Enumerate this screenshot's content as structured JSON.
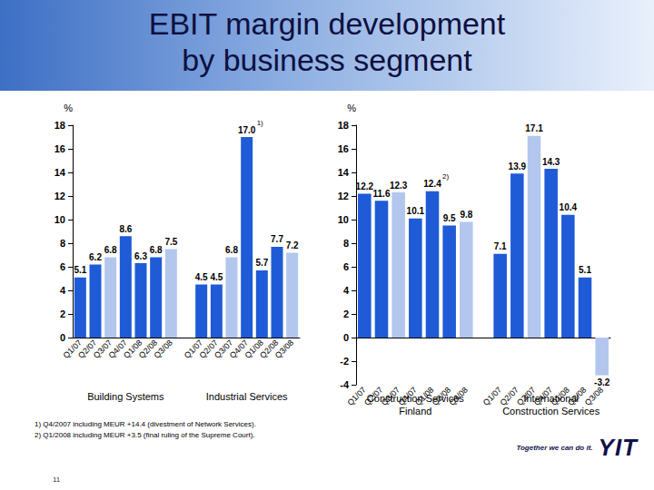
{
  "title": "EBIT margin development\nby business segment",
  "chart_data": [
    {
      "type": "bar",
      "y_label": "%",
      "categories": [
        "Q1/07",
        "Q2/07",
        "Q3/07",
        "Q4/07",
        "Q1/08",
        "Q2/08",
        "Q3/08",
        null,
        "Q1/07",
        "Q2/07",
        "Q3/07",
        "Q4/07",
        "Q1/08",
        "Q2/08",
        "Q3/08"
      ],
      "values": [
        5.1,
        6.2,
        6.8,
        8.6,
        6.3,
        6.8,
        7.5,
        null,
        4.5,
        4.5,
        6.8,
        17.0,
        5.7,
        7.7,
        7.2
      ],
      "value_labels": [
        "5.1",
        "6.2",
        "6.8",
        "8.6",
        "6.3",
        "6.8",
        "7.5",
        null,
        "4.5",
        "4.5",
        "6.8",
        "17.0",
        "5.7",
        "7.7",
        "7.2"
      ],
      "colors": [
        "#1f5bd6",
        "#1f5bd6",
        "#b3c6ee",
        "#1f5bd6",
        "#1f5bd6",
        "#1f5bd6",
        "#b3c6ee",
        null,
        "#1f5bd6",
        "#1f5bd6",
        "#b3c6ee",
        "#1f5bd6",
        "#1f5bd6",
        "#1f5bd6",
        "#b3c6ee"
      ],
      "group_labels": [
        "Building Systems",
        "Industrial Services"
      ],
      "annotations": [
        {
          "text": "1)",
          "index": 11
        }
      ],
      "ylim": [
        0,
        18
      ],
      "yticks": [
        0,
        2,
        4,
        6,
        8,
        10,
        12,
        14,
        16,
        18
      ],
      "grid": false,
      "data_labels": true
    },
    {
      "type": "bar",
      "y_label": "%",
      "categories": [
        "Q1/07",
        "Q2/07",
        "Q3/07",
        "Q4/07",
        "Q1/08",
        "Q2/08",
        "Q3/08",
        null,
        "Q1/07",
        "Q2/07",
        "Q3/07",
        "Q4/07",
        "Q1/08",
        "Q2/08",
        "Q3/08"
      ],
      "values": [
        12.2,
        11.6,
        12.3,
        10.1,
        12.4,
        9.5,
        9.8,
        null,
        7.1,
        13.9,
        17.1,
        14.3,
        10.4,
        5.1,
        -3.2
      ],
      "value_labels": [
        "12.2",
        "11.6",
        "12.3",
        "10.1",
        "12.4",
        "9.5",
        "9.8",
        null,
        "7.1",
        "13.9",
        "17.1",
        "14.3",
        "10.4",
        "5.1",
        "-3.2"
      ],
      "colors": [
        "#1f5bd6",
        "#1f5bd6",
        "#b3c6ee",
        "#1f5bd6",
        "#1f5bd6",
        "#1f5bd6",
        "#b3c6ee",
        null,
        "#1f5bd6",
        "#1f5bd6",
        "#b3c6ee",
        "#1f5bd6",
        "#1f5bd6",
        "#1f5bd6",
        "#b3c6ee"
      ],
      "group_labels": [
        "Construction Services\nFinland",
        "International\nConstruction Services"
      ],
      "annotations": [
        {
          "text": "2)",
          "index": 4
        }
      ],
      "ylim": [
        -4,
        18
      ],
      "yticks": [
        -4,
        -2,
        0,
        2,
        4,
        6,
        8,
        10,
        12,
        14,
        16,
        18
      ],
      "grid": false,
      "data_labels": true
    }
  ],
  "footnotes": [
    "1) Q4/2007 including MEUR +14.4 (divestment of Network Services).",
    "2) Q1/2008 including MEUR +3.5 (final ruling of the Supreme Court)."
  ],
  "slogan": "Together we can do it.",
  "logo": "YIT",
  "page_number": "11"
}
